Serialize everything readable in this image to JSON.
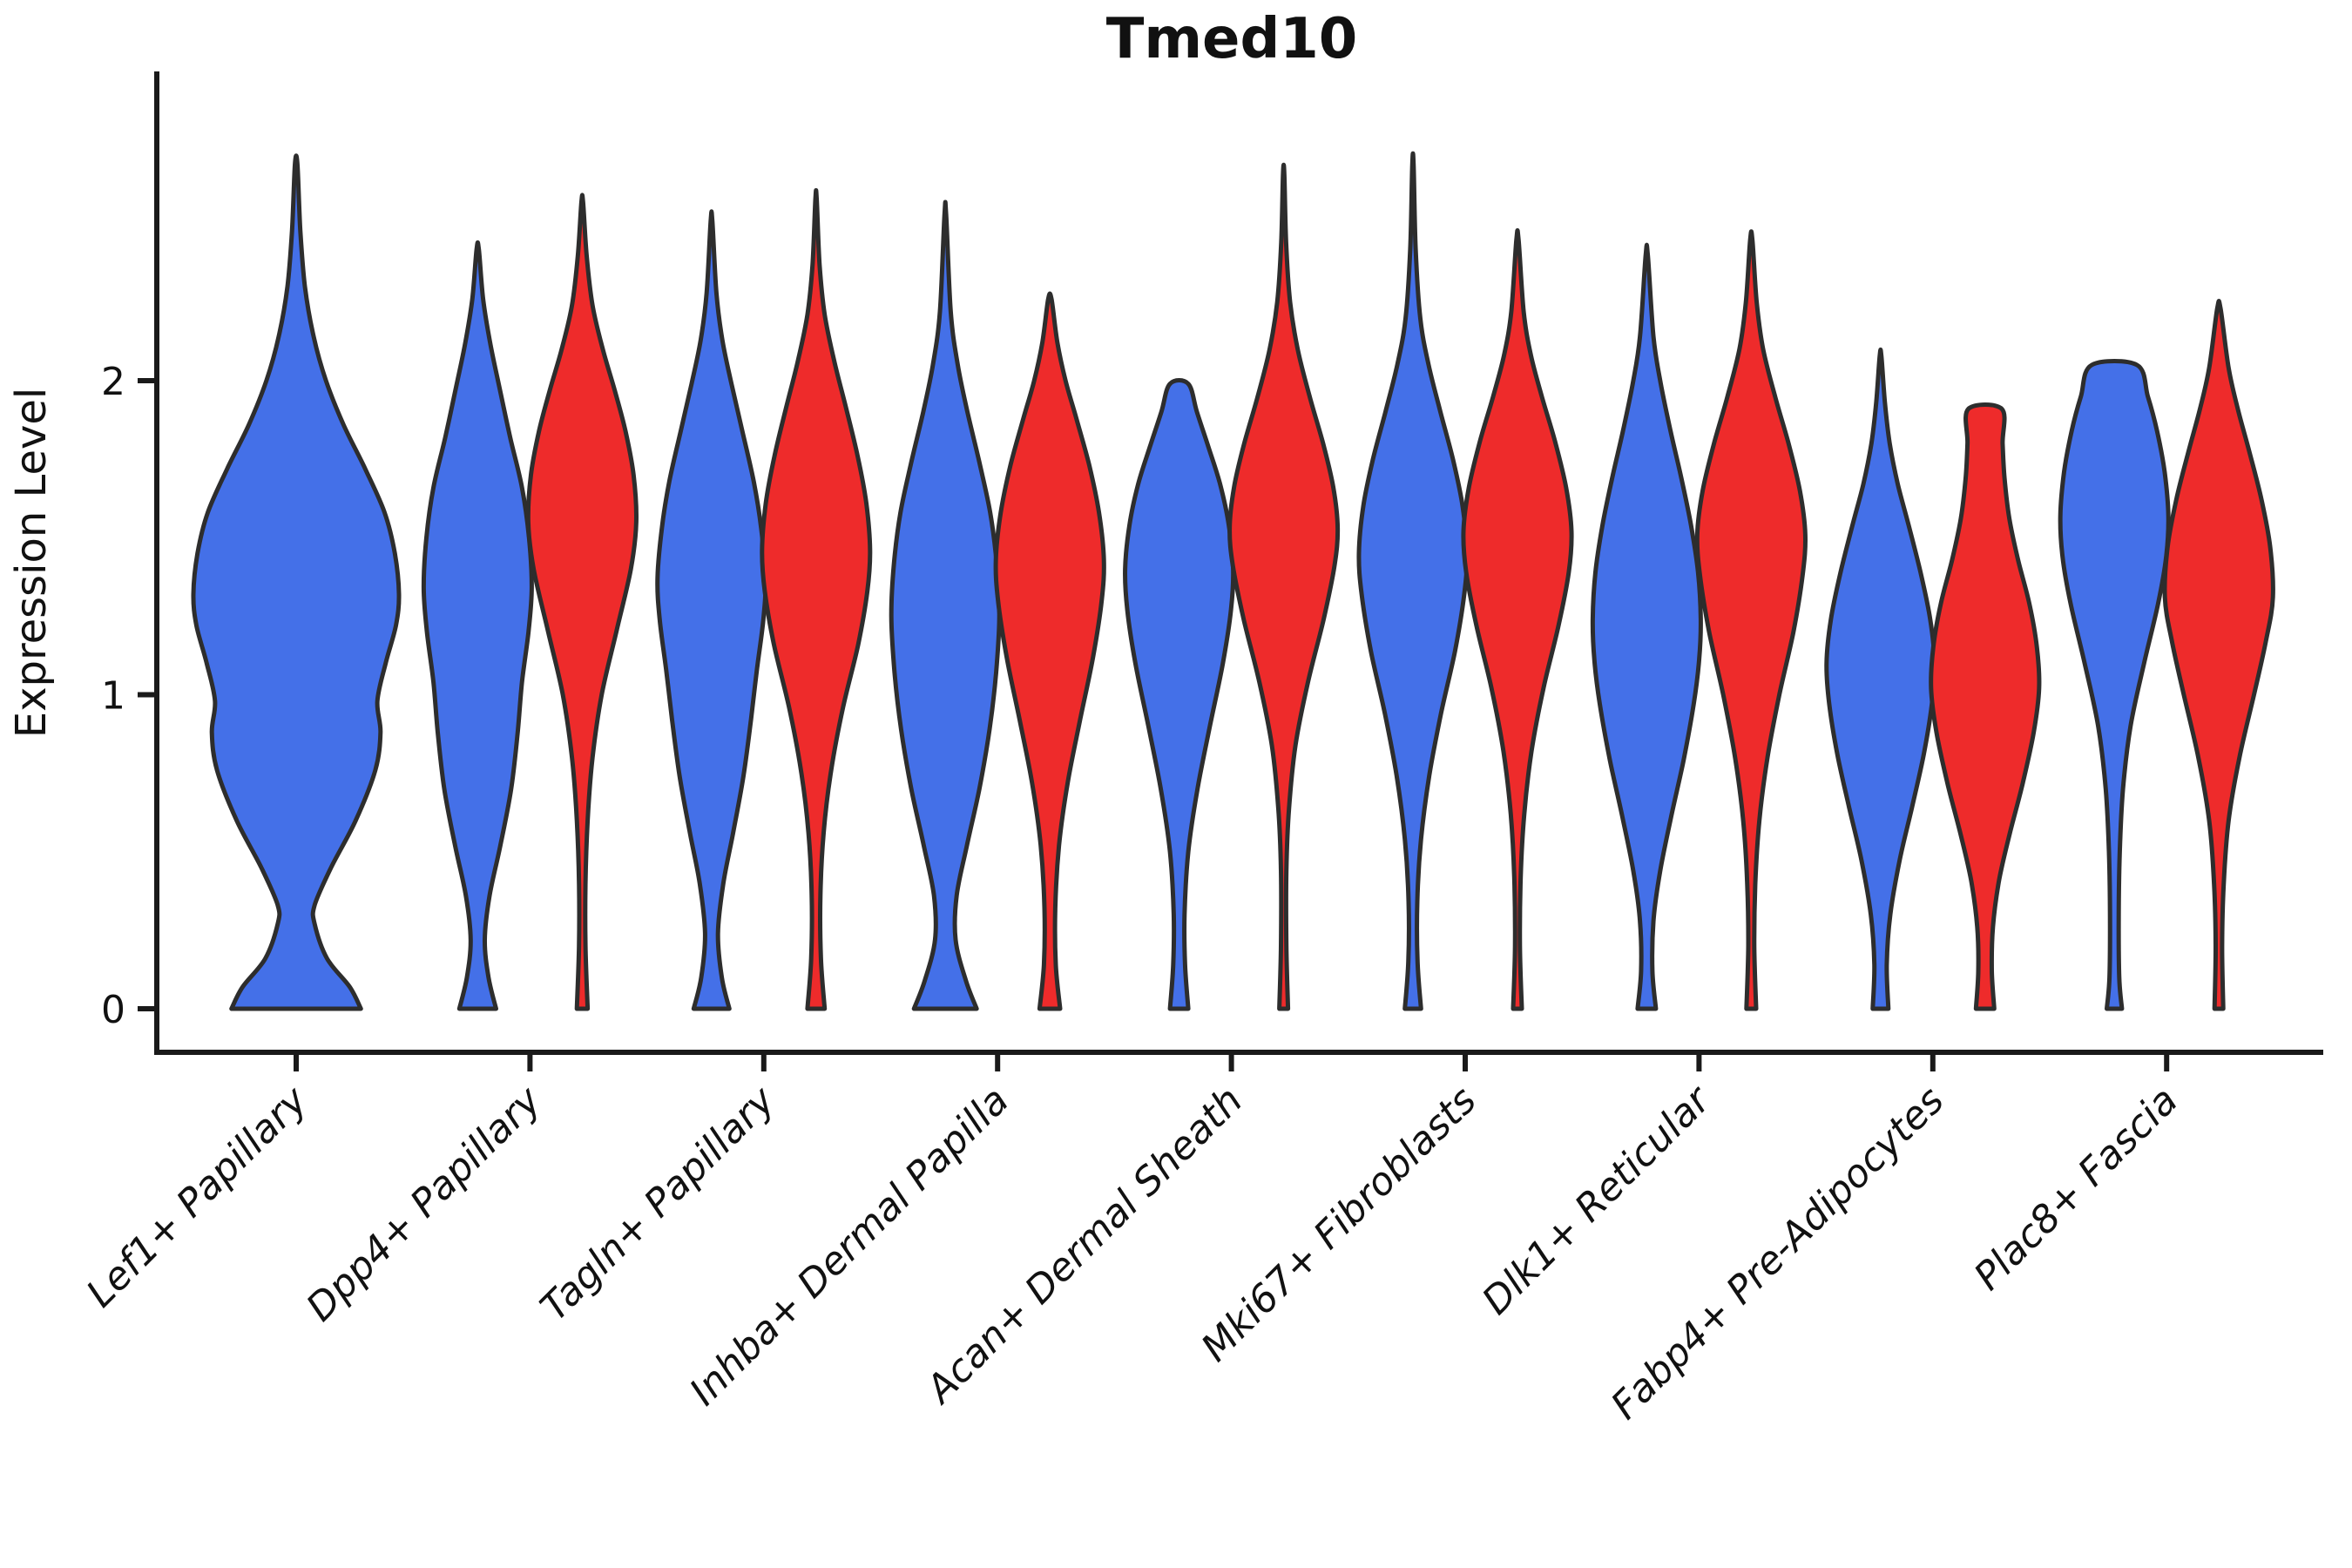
{
  "title": "Tmed10",
  "chart_data": {
    "type": "violin",
    "title": "Tmed10",
    "xlabel": "",
    "ylabel": "Expression Level",
    "ylim": [
      0,
      2.97
    ],
    "yticks": [
      0,
      1,
      2
    ],
    "grid": false,
    "legend_position": "none",
    "colors": {
      "blue_fill": "#4470E8",
      "red_fill": "#EE2B2B",
      "outline": "#2D2D2D",
      "axis": "#1A1A1A",
      "text": "#111111"
    },
    "categories": [
      "Lef1+ Papillary",
      "Dpp4+ Papillary",
      "Tagln+ Papillary",
      "Inhba+ Dermal Papilla",
      "Acan+ Dermal Sheath",
      "Mki67+ Fibroblasts",
      "Dlk1+ Reticular",
      "Fabp4+ Pre-Adipocytes",
      "Plac8+ Fascia"
    ],
    "violins": [
      {
        "category": 0,
        "color": "blue",
        "span": "full",
        "max": 2.69,
        "flat_top": false,
        "profile": [
          [
            0,
            0.63
          ],
          [
            0.07,
            0.52
          ],
          [
            0.16,
            0.3
          ],
          [
            0.27,
            0.18
          ],
          [
            0.33,
            0.18
          ],
          [
            0.45,
            0.34
          ],
          [
            0.6,
            0.58
          ],
          [
            0.76,
            0.77
          ],
          [
            0.88,
            0.82
          ],
          [
            0.98,
            0.79
          ],
          [
            1.1,
            0.87
          ],
          [
            1.22,
            0.97
          ],
          [
            1.32,
            1.0
          ],
          [
            1.45,
            0.96
          ],
          [
            1.58,
            0.86
          ],
          [
            1.72,
            0.67
          ],
          [
            1.86,
            0.46
          ],
          [
            2.0,
            0.29
          ],
          [
            2.14,
            0.17
          ],
          [
            2.3,
            0.085
          ],
          [
            2.48,
            0.04
          ],
          [
            2.69,
            0.012
          ]
        ]
      },
      {
        "category": 1,
        "color": "blue",
        "span": "half",
        "max": 2.42,
        "flat_top": false,
        "profile": [
          [
            0,
            0.34
          ],
          [
            0.1,
            0.2
          ],
          [
            0.22,
            0.13
          ],
          [
            0.36,
            0.22
          ],
          [
            0.52,
            0.42
          ],
          [
            0.7,
            0.62
          ],
          [
            0.88,
            0.74
          ],
          [
            1.04,
            0.82
          ],
          [
            1.2,
            0.94
          ],
          [
            1.34,
            1.0
          ],
          [
            1.5,
            0.95
          ],
          [
            1.66,
            0.82
          ],
          [
            1.82,
            0.6
          ],
          [
            1.98,
            0.4
          ],
          [
            2.12,
            0.23
          ],
          [
            2.26,
            0.1
          ],
          [
            2.42,
            0.02
          ]
        ]
      },
      {
        "category": 1,
        "color": "red",
        "span": "half",
        "max": 2.57,
        "flat_top": false,
        "profile": [
          [
            0,
            0.1
          ],
          [
            0.2,
            0.06
          ],
          [
            0.4,
            0.06
          ],
          [
            0.6,
            0.1
          ],
          [
            0.8,
            0.19
          ],
          [
            1.0,
            0.36
          ],
          [
            1.2,
            0.63
          ],
          [
            1.4,
            0.9
          ],
          [
            1.55,
            1.0
          ],
          [
            1.7,
            0.95
          ],
          [
            1.84,
            0.8
          ],
          [
            1.97,
            0.6
          ],
          [
            2.1,
            0.38
          ],
          [
            2.24,
            0.19
          ],
          [
            2.4,
            0.08
          ],
          [
            2.57,
            0.015
          ]
        ]
      },
      {
        "category": 2,
        "color": "blue",
        "span": "half",
        "max": 2.51,
        "flat_top": false,
        "profile": [
          [
            0,
            0.33
          ],
          [
            0.1,
            0.19
          ],
          [
            0.24,
            0.12
          ],
          [
            0.4,
            0.22
          ],
          [
            0.56,
            0.4
          ],
          [
            0.74,
            0.59
          ],
          [
            0.92,
            0.73
          ],
          [
            1.08,
            0.84
          ],
          [
            1.24,
            0.96
          ],
          [
            1.37,
            1.0
          ],
          [
            1.53,
            0.92
          ],
          [
            1.68,
            0.78
          ],
          [
            1.84,
            0.57
          ],
          [
            1.99,
            0.37
          ],
          [
            2.13,
            0.2
          ],
          [
            2.28,
            0.09
          ],
          [
            2.51,
            0.015
          ]
        ]
      },
      {
        "category": 2,
        "color": "red",
        "span": "half",
        "max": 2.58,
        "flat_top": false,
        "profile": [
          [
            0,
            0.16
          ],
          [
            0.16,
            0.09
          ],
          [
            0.36,
            0.08
          ],
          [
            0.56,
            0.14
          ],
          [
            0.76,
            0.28
          ],
          [
            0.96,
            0.5
          ],
          [
            1.16,
            0.78
          ],
          [
            1.33,
            0.95
          ],
          [
            1.46,
            1.0
          ],
          [
            1.61,
            0.93
          ],
          [
            1.76,
            0.77
          ],
          [
            1.91,
            0.56
          ],
          [
            2.06,
            0.34
          ],
          [
            2.21,
            0.16
          ],
          [
            2.37,
            0.065
          ],
          [
            2.58,
            0.012
          ]
        ]
      },
      {
        "category": 3,
        "color": "blue",
        "span": "half",
        "max": 2.53,
        "flat_top": false,
        "profile": [
          [
            0,
            0.58
          ],
          [
            0.09,
            0.38
          ],
          [
            0.22,
            0.19
          ],
          [
            0.36,
            0.21
          ],
          [
            0.52,
            0.4
          ],
          [
            0.7,
            0.63
          ],
          [
            0.89,
            0.82
          ],
          [
            1.07,
            0.94
          ],
          [
            1.25,
            1.0
          ],
          [
            1.42,
            0.95
          ],
          [
            1.58,
            0.83
          ],
          [
            1.74,
            0.63
          ],
          [
            1.9,
            0.41
          ],
          [
            2.05,
            0.23
          ],
          [
            2.22,
            0.1
          ],
          [
            2.53,
            0.015
          ]
        ]
      },
      {
        "category": 3,
        "color": "red",
        "span": "half",
        "max": 2.26,
        "flat_top": false,
        "profile": [
          [
            0,
            0.19
          ],
          [
            0.14,
            0.11
          ],
          [
            0.32,
            0.1
          ],
          [
            0.52,
            0.17
          ],
          [
            0.72,
            0.33
          ],
          [
            0.92,
            0.56
          ],
          [
            1.12,
            0.8
          ],
          [
            1.3,
            0.96
          ],
          [
            1.43,
            1.0
          ],
          [
            1.58,
            0.91
          ],
          [
            1.73,
            0.73
          ],
          [
            1.88,
            0.49
          ],
          [
            2.0,
            0.29
          ],
          [
            2.12,
            0.14
          ],
          [
            2.26,
            0.03
          ]
        ]
      },
      {
        "category": 4,
        "color": "blue",
        "span": "half",
        "max": 1.99,
        "flat_top": true,
        "profile": [
          [
            0,
            0.17
          ],
          [
            0.14,
            0.11
          ],
          [
            0.3,
            0.1
          ],
          [
            0.5,
            0.17
          ],
          [
            0.7,
            0.34
          ],
          [
            0.9,
            0.57
          ],
          [
            1.1,
            0.81
          ],
          [
            1.27,
            0.96
          ],
          [
            1.4,
            1.0
          ],
          [
            1.54,
            0.92
          ],
          [
            1.67,
            0.76
          ],
          [
            1.79,
            0.54
          ],
          [
            1.9,
            0.33
          ],
          [
            1.99,
            0.17
          ]
        ]
      },
      {
        "category": 4,
        "color": "red",
        "span": "half",
        "max": 2.66,
        "flat_top": false,
        "profile": [
          [
            0,
            0.08
          ],
          [
            0.2,
            0.05
          ],
          [
            0.44,
            0.05
          ],
          [
            0.64,
            0.1
          ],
          [
            0.84,
            0.22
          ],
          [
            1.04,
            0.45
          ],
          [
            1.24,
            0.74
          ],
          [
            1.41,
            0.94
          ],
          [
            1.53,
            1.0
          ],
          [
            1.66,
            0.92
          ],
          [
            1.8,
            0.73
          ],
          [
            1.95,
            0.48
          ],
          [
            2.1,
            0.26
          ],
          [
            2.25,
            0.12
          ],
          [
            2.44,
            0.045
          ],
          [
            2.66,
            0.012
          ]
        ]
      },
      {
        "category": 5,
        "color": "blue",
        "span": "half",
        "max": 2.69,
        "flat_top": false,
        "profile": [
          [
            0,
            0.15
          ],
          [
            0.15,
            0.085
          ],
          [
            0.34,
            0.08
          ],
          [
            0.54,
            0.15
          ],
          [
            0.74,
            0.3
          ],
          [
            0.94,
            0.52
          ],
          [
            1.14,
            0.78
          ],
          [
            1.32,
            0.95
          ],
          [
            1.45,
            1.0
          ],
          [
            1.6,
            0.92
          ],
          [
            1.75,
            0.74
          ],
          [
            1.9,
            0.51
          ],
          [
            2.05,
            0.29
          ],
          [
            2.2,
            0.135
          ],
          [
            2.42,
            0.05
          ],
          [
            2.69,
            0.012
          ]
        ]
      },
      {
        "category": 5,
        "color": "red",
        "span": "half",
        "max": 2.45,
        "flat_top": false,
        "profile": [
          [
            0,
            0.08
          ],
          [
            0.2,
            0.045
          ],
          [
            0.42,
            0.06
          ],
          [
            0.62,
            0.125
          ],
          [
            0.82,
            0.26
          ],
          [
            1.02,
            0.48
          ],
          [
            1.22,
            0.76
          ],
          [
            1.39,
            0.95
          ],
          [
            1.52,
            1.0
          ],
          [
            1.66,
            0.9
          ],
          [
            1.81,
            0.69
          ],
          [
            1.95,
            0.45
          ],
          [
            2.08,
            0.25
          ],
          [
            2.22,
            0.115
          ],
          [
            2.45,
            0.02
          ]
        ]
      },
      {
        "category": 6,
        "color": "blue",
        "span": "half",
        "max": 2.4,
        "flat_top": false,
        "profile": [
          [
            0,
            0.17
          ],
          [
            0.12,
            0.105
          ],
          [
            0.28,
            0.125
          ],
          [
            0.44,
            0.25
          ],
          [
            0.61,
            0.45
          ],
          [
            0.79,
            0.68
          ],
          [
            0.97,
            0.87
          ],
          [
            1.11,
            0.97
          ],
          [
            1.24,
            1.0
          ],
          [
            1.39,
            0.95
          ],
          [
            1.54,
            0.82
          ],
          [
            1.69,
            0.64
          ],
          [
            1.84,
            0.44
          ],
          [
            1.99,
            0.26
          ],
          [
            2.14,
            0.125
          ],
          [
            2.4,
            0.02
          ]
        ]
      },
      {
        "category": 6,
        "color": "red",
        "span": "half",
        "max": 2.45,
        "flat_top": false,
        "profile": [
          [
            0,
            0.09
          ],
          [
            0.2,
            0.055
          ],
          [
            0.4,
            0.075
          ],
          [
            0.6,
            0.15
          ],
          [
            0.8,
            0.3
          ],
          [
            1.0,
            0.52
          ],
          [
            1.2,
            0.78
          ],
          [
            1.38,
            0.95
          ],
          [
            1.51,
            1.0
          ],
          [
            1.65,
            0.9
          ],
          [
            1.8,
            0.69
          ],
          [
            1.95,
            0.44
          ],
          [
            2.1,
            0.22
          ],
          [
            2.25,
            0.1
          ],
          [
            2.45,
            0.02
          ]
        ]
      },
      {
        "category": 7,
        "color": "blue",
        "span": "half",
        "max": 2.08,
        "flat_top": false,
        "profile": [
          [
            0,
            0.145
          ],
          [
            0.14,
            0.115
          ],
          [
            0.3,
            0.18
          ],
          [
            0.47,
            0.35
          ],
          [
            0.64,
            0.58
          ],
          [
            0.81,
            0.8
          ],
          [
            0.97,
            0.95
          ],
          [
            1.1,
            1.0
          ],
          [
            1.24,
            0.92
          ],
          [
            1.39,
            0.74
          ],
          [
            1.54,
            0.52
          ],
          [
            1.67,
            0.32
          ],
          [
            1.8,
            0.17
          ],
          [
            1.93,
            0.08
          ],
          [
            2.08,
            0.015
          ]
        ]
      },
      {
        "category": 7,
        "color": "red",
        "span": "half",
        "max": 1.91,
        "flat_top": true,
        "profile": [
          [
            0,
            0.17
          ],
          [
            0.12,
            0.125
          ],
          [
            0.26,
            0.145
          ],
          [
            0.41,
            0.26
          ],
          [
            0.56,
            0.46
          ],
          [
            0.72,
            0.7
          ],
          [
            0.88,
            0.9
          ],
          [
            1.02,
            1.0
          ],
          [
            1.15,
            0.96
          ],
          [
            1.29,
            0.82
          ],
          [
            1.43,
            0.61
          ],
          [
            1.56,
            0.45
          ],
          [
            1.69,
            0.36
          ],
          [
            1.8,
            0.325
          ],
          [
            1.91,
            0.31
          ]
        ]
      },
      {
        "category": 8,
        "color": "blue",
        "span": "half",
        "max": 2.05,
        "flat_top": true,
        "profile": [
          [
            0,
            0.14
          ],
          [
            0.1,
            0.09
          ],
          [
            0.3,
            0.08
          ],
          [
            0.5,
            0.1
          ],
          [
            0.7,
            0.16
          ],
          [
            0.9,
            0.3
          ],
          [
            1.1,
            0.55
          ],
          [
            1.29,
            0.81
          ],
          [
            1.44,
            0.96
          ],
          [
            1.57,
            1.0
          ],
          [
            1.71,
            0.93
          ],
          [
            1.84,
            0.79
          ],
          [
            1.95,
            0.62
          ],
          [
            2.05,
            0.42
          ]
        ]
      },
      {
        "category": 8,
        "color": "red",
        "span": "half",
        "max": 2.23,
        "flat_top": false,
        "profile": [
          [
            0,
            0.08
          ],
          [
            0.2,
            0.06
          ],
          [
            0.4,
            0.09
          ],
          [
            0.6,
            0.18
          ],
          [
            0.8,
            0.38
          ],
          [
            1.0,
            0.65
          ],
          [
            1.17,
            0.87
          ],
          [
            1.31,
            1.0
          ],
          [
            1.47,
            0.95
          ],
          [
            1.62,
            0.79
          ],
          [
            1.77,
            0.57
          ],
          [
            1.91,
            0.35
          ],
          [
            2.04,
            0.18
          ],
          [
            2.23,
            0.03
          ]
        ]
      }
    ]
  }
}
